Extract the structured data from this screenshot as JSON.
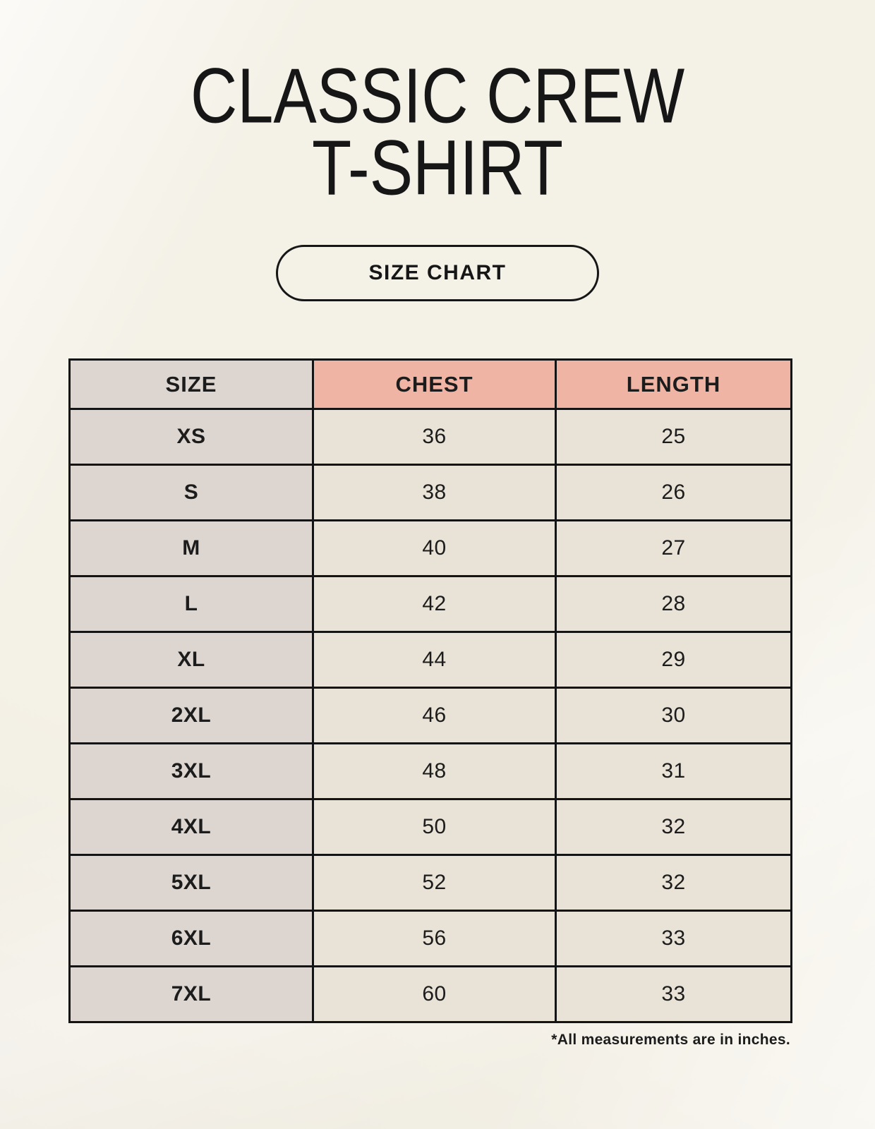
{
  "page": {
    "title_line1": "CLASSIC CREW",
    "title_line2": "T-SHIRT",
    "button_label": "SIZE CHART",
    "footnote": "*All measurements are in inches."
  },
  "colors": {
    "background": "#f4f1e7",
    "header_accent_pink": "#efb4a3",
    "size_column_grey": "#ddd6d0",
    "value_cell_beige": "#e9e2d6",
    "border_black": "#141414",
    "text": "#1c1c1c"
  },
  "table": {
    "headers": [
      "SIZE",
      "CHEST",
      "LENGTH"
    ],
    "rows": [
      [
        "XS",
        "36",
        "25"
      ],
      [
        "S",
        "38",
        "26"
      ],
      [
        "M",
        "40",
        "27"
      ],
      [
        "L",
        "42",
        "28"
      ],
      [
        "XL",
        "44",
        "29"
      ],
      [
        "2XL",
        "46",
        "30"
      ],
      [
        "3XL",
        "48",
        "31"
      ],
      [
        "4XL",
        "50",
        "32"
      ],
      [
        "5XL",
        "52",
        "32"
      ],
      [
        "6XL",
        "56",
        "33"
      ],
      [
        "7XL",
        "60",
        "33"
      ]
    ]
  },
  "chart_data": {
    "type": "table",
    "title": "CLASSIC CREW T-SHIRT SIZE CHART",
    "columns": [
      "SIZE",
      "CHEST",
      "LENGTH"
    ],
    "rows": [
      {
        "size": "XS",
        "chest": 36,
        "length": 25
      },
      {
        "size": "S",
        "chest": 38,
        "length": 26
      },
      {
        "size": "M",
        "chest": 40,
        "length": 27
      },
      {
        "size": "L",
        "chest": 42,
        "length": 28
      },
      {
        "size": "XL",
        "chest": 44,
        "length": 29
      },
      {
        "size": "2XL",
        "chest": 46,
        "length": 30
      },
      {
        "size": "3XL",
        "chest": 48,
        "length": 31
      },
      {
        "size": "4XL",
        "chest": 50,
        "length": 32
      },
      {
        "size": "5XL",
        "chest": 52,
        "length": 32
      },
      {
        "size": "6XL",
        "chest": 56,
        "length": 33
      },
      {
        "size": "7XL",
        "chest": 60,
        "length": 33
      }
    ],
    "units": "inches"
  }
}
